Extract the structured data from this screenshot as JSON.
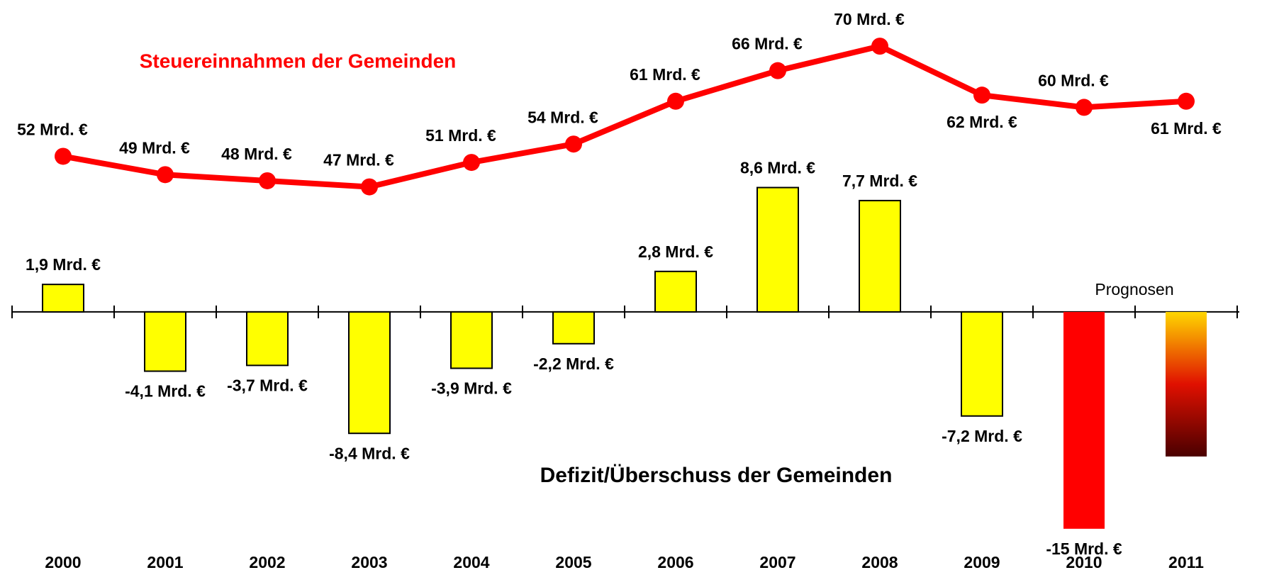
{
  "chart_data": {
    "type": "bar_line",
    "categories": [
      "2000",
      "2001",
      "2002",
      "2003",
      "2004",
      "2005",
      "2006",
      "2007",
      "2008",
      "2009",
      "2010",
      "2011"
    ],
    "ylim": [
      -15.5,
      12.5
    ],
    "y2lim": [
      40,
      75
    ],
    "annotation": "Prognosen",
    "series": [
      {
        "name": "Defizit/Überschuss der Gemeinden",
        "type": "bar",
        "colors": [
          "#ffff00",
          "#ffff00",
          "#ffff00",
          "#ffff00",
          "#ffff00",
          "#ffff00",
          "#ffff00",
          "#ffff00",
          "#ffff00",
          "#ffff00",
          "#ff0000",
          [
            "#ffd700",
            "#e01000",
            "#4a0000"
          ]
        ],
        "values": [
          1.9,
          -4.1,
          -3.7,
          -8.4,
          -3.9,
          -2.2,
          2.8,
          8.6,
          7.7,
          -7.2,
          -15,
          -10
        ],
        "value_labels": [
          "1,9 Mrd. €",
          "-4,1 Mrd. €",
          "-3,7 Mrd. €",
          "-8,4 Mrd. €",
          "-3,9 Mrd. €",
          "-2,2 Mrd. €",
          "2,8 Mrd. €",
          "8,6 Mrd. €",
          "7,7 Mrd. €",
          "-7,2 Mrd. €",
          "-15 Mrd. €",
          null
        ]
      },
      {
        "name": "Steuereinnahmen der Gemeinden",
        "type": "line",
        "axis": "y2",
        "color": "#ff0000",
        "values": [
          52,
          49,
          48,
          47,
          51,
          54,
          61,
          66,
          70,
          62,
          60,
          61
        ],
        "value_labels": [
          "52 Mrd. €",
          "49 Mrd. €",
          "48 Mrd. €",
          "47 Mrd. €",
          "51 Mrd. €",
          "54 Mrd. €",
          "61 Mrd. €",
          "66 Mrd. €",
          "70 Mrd. €",
          "62 Mrd. €",
          "60 Mrd. €",
          "61 Mrd. €"
        ]
      }
    ]
  }
}
